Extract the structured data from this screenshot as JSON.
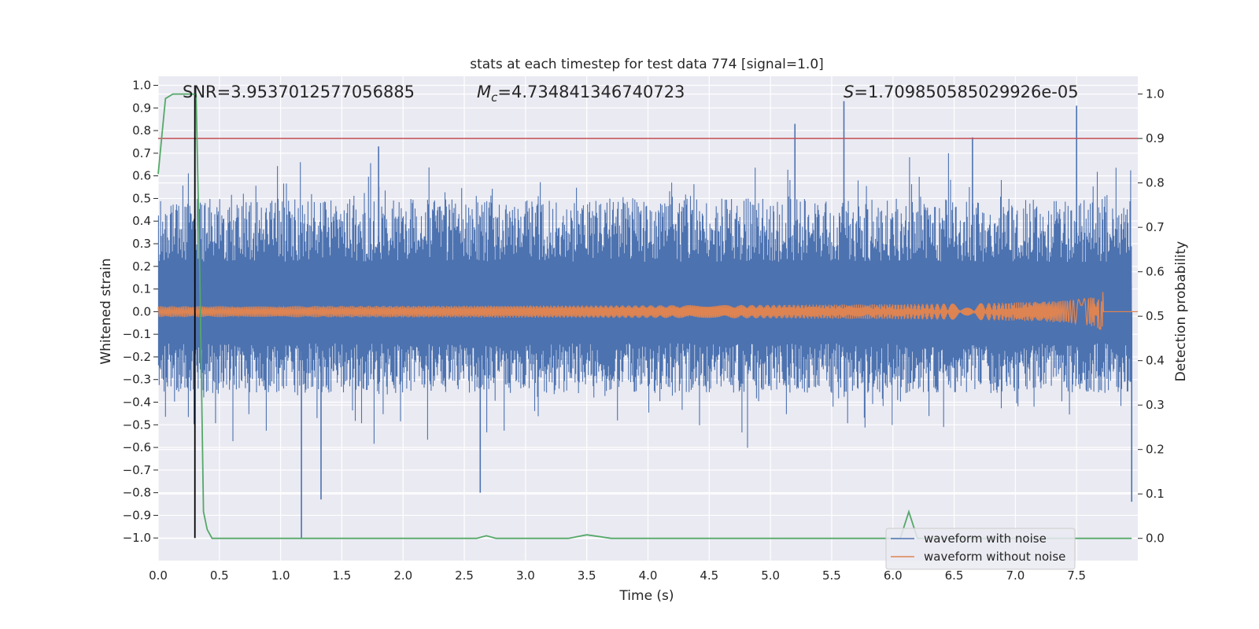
{
  "chart_data": {
    "type": "line",
    "title": "stats at each timestep for test data 774 [signal=1.0]",
    "xlabel": "Time (s)",
    "ylabel": "Whitened strain",
    "y2label": "Detection probability",
    "xlim": [
      0.0,
      8.0
    ],
    "ylim": [
      -1.1,
      1.04
    ],
    "y2lim": [
      -0.05,
      1.04
    ],
    "x_ticks": [
      "0.0",
      "0.5",
      "1.0",
      "1.5",
      "2.0",
      "2.5",
      "3.0",
      "3.5",
      "4.0",
      "4.5",
      "5.0",
      "5.5",
      "6.0",
      "6.5",
      "7.0",
      "7.5"
    ],
    "y_ticks": [
      "1.0",
      "0.9",
      "0.8",
      "0.7",
      "0.6",
      "0.5",
      "0.4",
      "0.3",
      "0.2",
      "0.1",
      "0.0",
      "−0.1",
      "−0.2",
      "−0.3",
      "−0.4",
      "−0.5",
      "−0.6",
      "−0.7",
      "−0.8",
      "−0.9",
      "−1.0"
    ],
    "y2_ticks": [
      "1.0",
      "0.9",
      "0.8",
      "0.7",
      "0.6",
      "0.5",
      "0.4",
      "0.3",
      "0.2",
      "0.1",
      "0.0"
    ],
    "annotations": {
      "snr": "SNR=3.9537012577056885",
      "mc_symbol": "M",
      "mc_sub": "c",
      "mc_value": "=4.734841346740723",
      "s_symbol": "S",
      "s_value": "=1.709850585029926e-05"
    },
    "series": [
      {
        "name": "waveform with noise",
        "color": "#4c72b0",
        "envelope": "noise band roughly -0.35 to 0.55 with spikes",
        "spikes": [
          [
            0.3,
            0.96
          ],
          [
            1.17,
            -1.0
          ],
          [
            1.33,
            -0.83
          ],
          [
            1.8,
            0.73
          ],
          [
            2.63,
            -0.8
          ],
          [
            5.2,
            0.83
          ],
          [
            5.6,
            0.93
          ],
          [
            6.65,
            0.77
          ],
          [
            7.5,
            0.91
          ],
          [
            7.95,
            -0.84
          ]
        ]
      },
      {
        "name": "waveform without noise",
        "color": "#dd8452",
        "chirp_end_time": 7.72,
        "peak_amplitude": 0.1
      },
      {
        "name": "detection probability",
        "axis": "right",
        "color": "#55a868",
        "x": [
          0.0,
          0.06,
          0.12,
          0.2,
          0.28,
          0.31,
          0.34,
          0.37,
          0.4,
          0.44,
          2.6,
          2.68,
          2.76,
          3.35,
          3.5,
          3.7,
          6.06,
          6.13,
          6.2,
          7.95
        ],
        "y": [
          0.82,
          0.99,
          1.0,
          1.0,
          1.0,
          0.999,
          0.6,
          0.06,
          0.02,
          0.0,
          0.0,
          0.006,
          0.0,
          0.0,
          0.008,
          0.0,
          0.0,
          0.06,
          0.0,
          0.0
        ]
      },
      {
        "name": "threshold",
        "axis": "right",
        "color": "#c44e52",
        "value": 0.9
      },
      {
        "name": "detection time",
        "color": "#000000",
        "x": 0.3
      }
    ],
    "legend": {
      "position": "lower-right",
      "entries": [
        "waveform with noise",
        "waveform without noise"
      ]
    }
  }
}
